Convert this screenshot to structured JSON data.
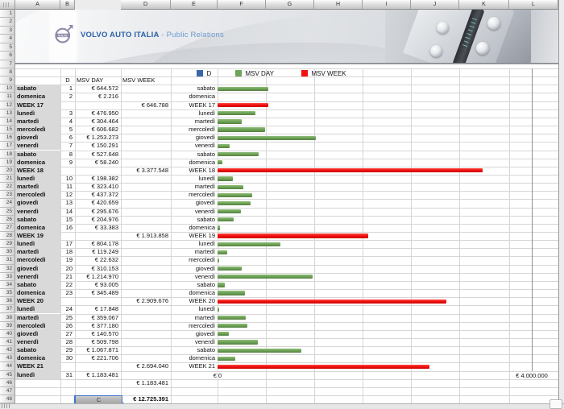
{
  "app": {
    "columns": [
      "A",
      "B",
      "C",
      "D",
      "E",
      "F",
      "G",
      "H",
      "I",
      "J",
      "K",
      "L"
    ],
    "selected_column": "C",
    "selected_cell": "C48",
    "visible_rows": 48
  },
  "banner": {
    "title": "VOLVO AUTO ITALIA",
    "subtitle": "- Public Relations",
    "logo": "volvo-iron-mark",
    "title_color": "#2B5FA8",
    "subtitle_color": "#6D9AD0"
  },
  "legend": {
    "items": [
      {
        "label": "D",
        "color": "#3A67A8"
      },
      {
        "label": "MSV DAY",
        "color": "#6FA45A"
      },
      {
        "label": "MSV WEEK",
        "color": "#F21212"
      }
    ]
  },
  "sheet": {
    "headers": {
      "d": "D",
      "msv_day": "MSV DAY",
      "msv_week": "MSV WEEK"
    },
    "rows": [
      {
        "r": 10,
        "label": "sabato",
        "d": "1",
        "day": "€ 644.572",
        "week": "",
        "kind": "day",
        "value": 644572,
        "bar": true,
        "elabel": true
      },
      {
        "r": 11,
        "label": "domenica",
        "d": "2",
        "day": "€ 2.216",
        "week": "",
        "kind": "day",
        "value": 2216,
        "bar": true,
        "elabel": true
      },
      {
        "r": 12,
        "label": "WEEK 17",
        "d": "",
        "day": "",
        "week": "€ 646.788",
        "kind": "week",
        "value": 646788,
        "bar": true,
        "elabel": true
      },
      {
        "r": 13,
        "label": "lunedì",
        "d": "3",
        "day": "€ 476.950",
        "week": "",
        "kind": "day",
        "value": 476950,
        "bar": true,
        "elabel": true
      },
      {
        "r": 14,
        "label": "martedì",
        "d": "4",
        "day": "€ 304.464",
        "week": "",
        "kind": "day",
        "value": 304464,
        "bar": true,
        "elabel": true
      },
      {
        "r": 15,
        "label": "mercoledì",
        "d": "5",
        "day": "€ 606.682",
        "week": "",
        "kind": "day",
        "value": 606682,
        "bar": true,
        "elabel": true
      },
      {
        "r": 16,
        "label": "giovedì",
        "d": "6",
        "day": "€ 1.253.273",
        "week": "",
        "kind": "day",
        "value": 1253273,
        "bar": true,
        "elabel": true
      },
      {
        "r": 17,
        "label": "venerdì",
        "d": "7",
        "day": "€ 150.291",
        "week": "",
        "kind": "day",
        "value": 150291,
        "bar": true,
        "elabel": true
      },
      {
        "r": 18,
        "label": "sabato",
        "d": "8",
        "day": "€ 527.648",
        "week": "",
        "kind": "day",
        "value": 527648,
        "bar": true,
        "elabel": true
      },
      {
        "r": 19,
        "label": "domenica",
        "d": "9",
        "day": "€ 58.240",
        "week": "",
        "kind": "day",
        "value": 58240,
        "bar": true,
        "elabel": true
      },
      {
        "r": 20,
        "label": "WEEK 18",
        "d": "",
        "day": "",
        "week": "€ 3.377.548",
        "kind": "week",
        "value": 3377548,
        "bar": true,
        "elabel": true
      },
      {
        "r": 21,
        "label": "lunedì",
        "d": "10",
        "day": "€ 198.382",
        "week": "",
        "kind": "day",
        "value": 198382,
        "bar": true,
        "elabel": true
      },
      {
        "r": 22,
        "label": "martedì",
        "d": "11",
        "day": "€ 323.410",
        "week": "",
        "kind": "day",
        "value": 323410,
        "bar": true,
        "elabel": true
      },
      {
        "r": 23,
        "label": "mercoledì",
        "d": "12",
        "day": "€ 437.372",
        "week": "",
        "kind": "day",
        "value": 437372,
        "bar": true,
        "elabel": true
      },
      {
        "r": 24,
        "label": "giovedì",
        "d": "13",
        "day": "€ 420.659",
        "week": "",
        "kind": "day",
        "value": 420659,
        "bar": true,
        "elabel": true
      },
      {
        "r": 25,
        "label": "venerdì",
        "d": "14",
        "day": "€ 295.676",
        "week": "",
        "kind": "day",
        "value": 295676,
        "bar": true,
        "elabel": true
      },
      {
        "r": 26,
        "label": "sabato",
        "d": "15",
        "day": "€ 204.976",
        "week": "",
        "kind": "day",
        "value": 204976,
        "bar": true,
        "elabel": true
      },
      {
        "r": 27,
        "label": "domenica",
        "d": "16",
        "day": "€ 33.383",
        "week": "",
        "kind": "day",
        "value": 33383,
        "bar": true,
        "elabel": true
      },
      {
        "r": 28,
        "label": "WEEK 19",
        "d": "",
        "day": "",
        "week": "€ 1.913.858",
        "kind": "week",
        "value": 1913858,
        "bar": true,
        "elabel": true
      },
      {
        "r": 29,
        "label": "lunedì",
        "d": "17",
        "day": "€ 804.178",
        "week": "",
        "kind": "day",
        "value": 804178,
        "bar": true,
        "elabel": true
      },
      {
        "r": 30,
        "label": "martedì",
        "d": "18",
        "day": "€ 119.249",
        "week": "",
        "kind": "day",
        "value": 119249,
        "bar": true,
        "elabel": true
      },
      {
        "r": 31,
        "label": "mercoledì",
        "d": "19",
        "day": "€ 22.632",
        "week": "",
        "kind": "day",
        "value": 22632,
        "bar": true,
        "elabel": true
      },
      {
        "r": 32,
        "label": "giovedì",
        "d": "20",
        "day": "€ 310.153",
        "week": "",
        "kind": "day",
        "value": 310153,
        "bar": true,
        "elabel": true
      },
      {
        "r": 33,
        "label": "venerdì",
        "d": "21",
        "day": "€ 1.214.970",
        "week": "",
        "kind": "day",
        "value": 1214970,
        "bar": true,
        "elabel": true
      },
      {
        "r": 34,
        "label": "sabato",
        "d": "22",
        "day": "€ 93.005",
        "week": "",
        "kind": "day",
        "value": 93005,
        "bar": true,
        "elabel": true
      },
      {
        "r": 35,
        "label": "domenica",
        "d": "23",
        "day": "€ 345.489",
        "week": "",
        "kind": "day",
        "value": 345489,
        "bar": true,
        "elabel": true
      },
      {
        "r": 36,
        "label": "WEEK 20",
        "d": "",
        "day": "",
        "week": "€ 2.909.676",
        "kind": "week",
        "value": 2909676,
        "bar": true,
        "elabel": true
      },
      {
        "r": 37,
        "label": "lunedì",
        "d": "24",
        "day": "€ 17.848",
        "week": "",
        "kind": "day",
        "value": 17848,
        "bar": true,
        "elabel": true
      },
      {
        "r": 38,
        "label": "martedì",
        "d": "25",
        "day": "€ 359.067",
        "week": "",
        "kind": "day",
        "value": 359067,
        "bar": true,
        "elabel": true
      },
      {
        "r": 39,
        "label": "mercoledì",
        "d": "26",
        "day": "€ 377.180",
        "week": "",
        "kind": "day",
        "value": 377180,
        "bar": true,
        "elabel": true
      },
      {
        "r": 40,
        "label": "giovedì",
        "d": "27",
        "day": "€ 140.570",
        "week": "",
        "kind": "day",
        "value": 140570,
        "bar": true,
        "elabel": true
      },
      {
        "r": 41,
        "label": "venerdì",
        "d": "28",
        "day": "€ 509.798",
        "week": "",
        "kind": "day",
        "value": 509798,
        "bar": true,
        "elabel": true
      },
      {
        "r": 42,
        "label": "sabato",
        "d": "29",
        "day": "€ 1.067.871",
        "week": "",
        "kind": "day",
        "value": 1067871,
        "bar": true,
        "elabel": true
      },
      {
        "r": 43,
        "label": "domenica",
        "d": "30",
        "day": "€ 221.706",
        "week": "",
        "kind": "day",
        "value": 221706,
        "bar": true,
        "elabel": true
      },
      {
        "r": 44,
        "label": "WEEK 21",
        "d": "",
        "day": "",
        "week": "€ 2.694.040",
        "kind": "week",
        "value": 2694040,
        "bar": true,
        "elabel": true
      },
      {
        "r": 45,
        "label": "lunedì",
        "d": "31",
        "day": "€ 1.183.481",
        "week": "",
        "kind": "day",
        "value": 1183481,
        "bar": false,
        "elabel": false
      },
      {
        "r": 46,
        "label": "",
        "d": "",
        "day": "",
        "week": "€ 1.183.481",
        "kind": "plain",
        "value": 0,
        "bar": false,
        "elabel": false
      },
      {
        "r": 48,
        "label": "",
        "d": "",
        "day": "",
        "week": "€ 12.725.391",
        "kind": "total",
        "value": 0,
        "bar": false,
        "elabel": false
      }
    ]
  },
  "chart_data": {
    "type": "bar",
    "orientation": "horizontal",
    "title": "",
    "xlabel": "",
    "ylabel": "",
    "x_axis": {
      "min": 0,
      "max": 4000000,
      "tick_labels": [
        "€ 0",
        "€ 4.000.000"
      ]
    },
    "legend": {
      "position": "top",
      "entries": [
        "D",
        "MSV DAY",
        "MSV WEEK"
      ]
    },
    "series_colors": {
      "MSV DAY": "#6FA45A",
      "MSV WEEK": "#F21212",
      "D": "#3A67A8"
    },
    "grid": true,
    "items": [
      {
        "category": "sabato",
        "series": "MSV DAY",
        "value": 644572
      },
      {
        "category": "domenica",
        "series": "MSV DAY",
        "value": 2216
      },
      {
        "category": "WEEK 17",
        "series": "MSV WEEK",
        "value": 646788
      },
      {
        "category": "lunedì",
        "series": "MSV DAY",
        "value": 476950
      },
      {
        "category": "martedì",
        "series": "MSV DAY",
        "value": 304464
      },
      {
        "category": "mercoledì",
        "series": "MSV DAY",
        "value": 606682
      },
      {
        "category": "giovedì",
        "series": "MSV DAY",
        "value": 1253273
      },
      {
        "category": "venerdì",
        "series": "MSV DAY",
        "value": 150291
      },
      {
        "category": "sabato",
        "series": "MSV DAY",
        "value": 527648
      },
      {
        "category": "domenica",
        "series": "MSV DAY",
        "value": 58240
      },
      {
        "category": "WEEK 18",
        "series": "MSV WEEK",
        "value": 3377548
      },
      {
        "category": "lunedì",
        "series": "MSV DAY",
        "value": 198382
      },
      {
        "category": "martedì",
        "series": "MSV DAY",
        "value": 323410
      },
      {
        "category": "mercoledì",
        "series": "MSV DAY",
        "value": 437372
      },
      {
        "category": "giovedì",
        "series": "MSV DAY",
        "value": 420659
      },
      {
        "category": "venerdì",
        "series": "MSV DAY",
        "value": 295676
      },
      {
        "category": "sabato",
        "series": "MSV DAY",
        "value": 204976
      },
      {
        "category": "domenica",
        "series": "MSV DAY",
        "value": 33383
      },
      {
        "category": "WEEK 19",
        "series": "MSV WEEK",
        "value": 1913858
      },
      {
        "category": "lunedì",
        "series": "MSV DAY",
        "value": 804178
      },
      {
        "category": "martedì",
        "series": "MSV DAY",
        "value": 119249
      },
      {
        "category": "mercoledì",
        "series": "MSV DAY",
        "value": 22632
      },
      {
        "category": "giovedì",
        "series": "MSV DAY",
        "value": 310153
      },
      {
        "category": "venerdì",
        "series": "MSV DAY",
        "value": 1214970
      },
      {
        "category": "sabato",
        "series": "MSV DAY",
        "value": 93005
      },
      {
        "category": "domenica",
        "series": "MSV DAY",
        "value": 345489
      },
      {
        "category": "WEEK 20",
        "series": "MSV WEEK",
        "value": 2909676
      },
      {
        "category": "lunedì",
        "series": "MSV DAY",
        "value": 17848
      },
      {
        "category": "martedì",
        "series": "MSV DAY",
        "value": 359067
      },
      {
        "category": "mercoledì",
        "series": "MSV DAY",
        "value": 377180
      },
      {
        "category": "giovedì",
        "series": "MSV DAY",
        "value": 140570
      },
      {
        "category": "venerdì",
        "series": "MSV DAY",
        "value": 509798
      },
      {
        "category": "sabato",
        "series": "MSV DAY",
        "value": 1067871
      },
      {
        "category": "domenica",
        "series": "MSV DAY",
        "value": 221706
      },
      {
        "category": "WEEK 21",
        "series": "MSV WEEK",
        "value": 2694040
      }
    ]
  }
}
